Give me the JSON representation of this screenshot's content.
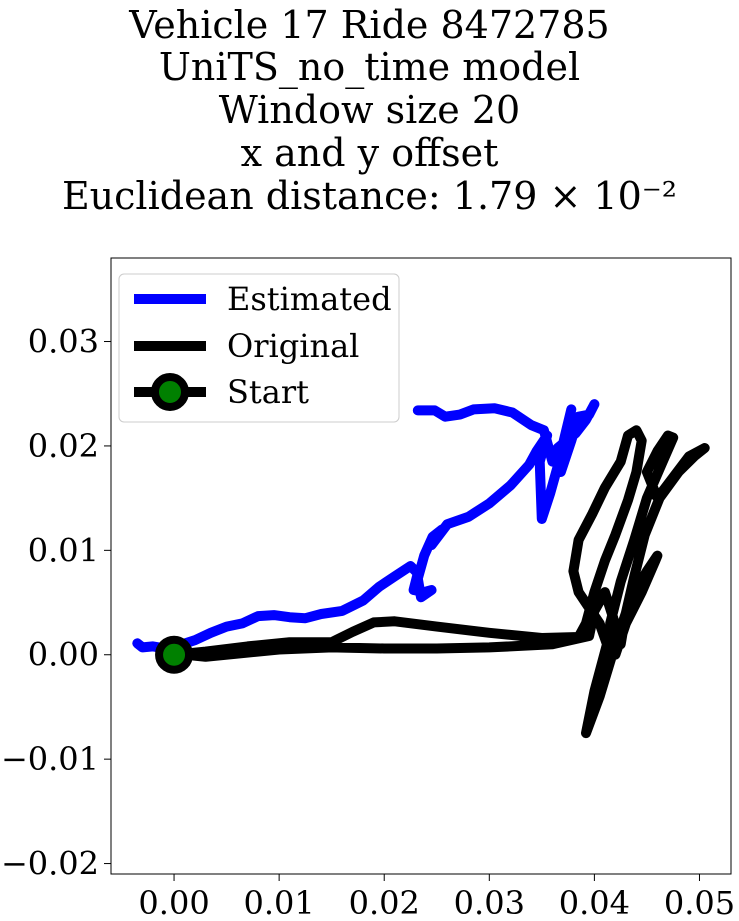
{
  "chart_data": {
    "type": "line",
    "title_lines": [
      "Vehicle 17 Ride 8472785",
      "UniTS_no_time model",
      "Window size 20",
      "x and y offset",
      "Euclidean distance: 1.79 × 10⁻²"
    ],
    "xlabel": "",
    "ylabel": "",
    "xlim": [
      -0.006,
      0.053
    ],
    "ylim": [
      -0.021,
      0.038
    ],
    "xticks": [
      0.0,
      0.01,
      0.02,
      0.03,
      0.04,
      0.05
    ],
    "xtick_labels": [
      "0.00",
      "0.01",
      "0.02",
      "0.03",
      "0.04",
      "0.05"
    ],
    "yticks": [
      -0.02,
      -0.01,
      0.0,
      0.01,
      0.02,
      0.03
    ],
    "ytick_labels": [
      "−0.02",
      "−0.01",
      "0.00",
      "0.01",
      "0.02",
      "0.03"
    ],
    "grid": false,
    "legend_position": "top-left",
    "series": [
      {
        "name": "Estimated",
        "color": "#0000ff",
        "points": [
          [
            -0.0035,
            0.0011
          ],
          [
            -0.003,
            0.0007
          ],
          [
            -0.002,
            0.0008
          ],
          [
            -0.0008,
            0.0006
          ],
          [
            0.0005,
            0.0009
          ],
          [
            0.002,
            0.0014
          ],
          [
            0.0035,
            0.0021
          ],
          [
            0.005,
            0.0027
          ],
          [
            0.0065,
            0.003
          ],
          [
            0.008,
            0.0037
          ],
          [
            0.0095,
            0.0038
          ],
          [
            0.011,
            0.0036
          ],
          [
            0.0125,
            0.0035
          ],
          [
            0.014,
            0.0039
          ],
          [
            0.016,
            0.0042
          ],
          [
            0.018,
            0.0052
          ],
          [
            0.0195,
            0.0065
          ],
          [
            0.021,
            0.0075
          ],
          [
            0.0225,
            0.0085
          ],
          [
            0.0232,
            0.0078
          ],
          [
            0.0228,
            0.0062
          ],
          [
            0.0238,
            0.006
          ],
          [
            0.0245,
            0.0062
          ],
          [
            0.0235,
            0.0055
          ],
          [
            0.0232,
            0.0073
          ],
          [
            0.0238,
            0.0095
          ],
          [
            0.0246,
            0.0113
          ],
          [
            0.0255,
            0.012
          ],
          [
            0.0245,
            0.0105
          ],
          [
            0.026,
            0.0125
          ],
          [
            0.028,
            0.0132
          ],
          [
            0.03,
            0.0145
          ],
          [
            0.032,
            0.0162
          ],
          [
            0.0338,
            0.0182
          ],
          [
            0.0345,
            0.0195
          ],
          [
            0.0355,
            0.021
          ],
          [
            0.0348,
            0.0185
          ],
          [
            0.035,
            0.013
          ],
          [
            0.0358,
            0.0155
          ],
          [
            0.0365,
            0.018
          ],
          [
            0.0372,
            0.021
          ],
          [
            0.0378,
            0.0235
          ],
          [
            0.037,
            0.02
          ],
          [
            0.0368,
            0.0175
          ],
          [
            0.0378,
            0.0205
          ],
          [
            0.0385,
            0.0228
          ],
          [
            0.0395,
            0.023
          ],
          [
            0.04,
            0.024
          ],
          [
            0.0392,
            0.0225
          ],
          [
            0.0382,
            0.0212
          ],
          [
            0.0365,
            0.0198
          ],
          [
            0.036,
            0.0185
          ],
          [
            0.0352,
            0.0215
          ],
          [
            0.034,
            0.022
          ],
          [
            0.0322,
            0.0232
          ],
          [
            0.0305,
            0.0236
          ],
          [
            0.0285,
            0.0235
          ],
          [
            0.0272,
            0.023
          ],
          [
            0.0258,
            0.0228
          ],
          [
            0.0248,
            0.0234
          ],
          [
            0.0232,
            0.0234
          ]
        ]
      },
      {
        "name": "Original",
        "color": "#000000",
        "points": [
          [
            0.0,
            0.0
          ],
          [
            0.003,
            0.0003
          ],
          [
            0.007,
            0.0008
          ],
          [
            0.011,
            0.0012
          ],
          [
            0.015,
            0.0012
          ],
          [
            0.017,
            0.0022
          ],
          [
            0.019,
            0.0031
          ],
          [
            0.021,
            0.0032
          ],
          [
            0.025,
            0.0027
          ],
          [
            0.03,
            0.0021
          ],
          [
            0.035,
            0.0016
          ],
          [
            0.0385,
            0.0017
          ],
          [
            0.0392,
            0.003
          ],
          [
            0.04,
            0.006
          ],
          [
            0.041,
            0.009
          ],
          [
            0.042,
            0.0115
          ],
          [
            0.0432,
            0.0148
          ],
          [
            0.044,
            0.0175
          ],
          [
            0.0445,
            0.0205
          ],
          [
            0.044,
            0.0215
          ],
          [
            0.0432,
            0.021
          ],
          [
            0.0425,
            0.0185
          ],
          [
            0.041,
            0.016
          ],
          [
            0.0398,
            0.0135
          ],
          [
            0.0385,
            0.011
          ],
          [
            0.038,
            0.008
          ],
          [
            0.0385,
            0.006
          ],
          [
            0.0395,
            0.0045
          ],
          [
            0.0405,
            0.003
          ],
          [
            0.0412,
            0.001
          ],
          [
            0.04,
            -0.0035
          ],
          [
            0.0392,
            -0.0075
          ],
          [
            0.0405,
            -0.004
          ],
          [
            0.042,
            0.001
          ],
          [
            0.0435,
            0.0055
          ],
          [
            0.045,
            0.008
          ],
          [
            0.046,
            0.0095
          ],
          [
            0.0458,
            0.009
          ],
          [
            0.0445,
            0.006
          ],
          [
            0.043,
            0.003
          ],
          [
            0.042,
            0.0
          ],
          [
            0.0415,
            0.003
          ],
          [
            0.0425,
            0.007
          ],
          [
            0.0438,
            0.011
          ],
          [
            0.045,
            0.015
          ],
          [
            0.0465,
            0.0185
          ],
          [
            0.0475,
            0.0208
          ],
          [
            0.047,
            0.021
          ],
          [
            0.046,
            0.0195
          ],
          [
            0.045,
            0.0175
          ],
          [
            0.046,
            0.015
          ],
          [
            0.0475,
            0.017
          ],
          [
            0.049,
            0.019
          ],
          [
            0.0505,
            0.0198
          ],
          [
            0.0495,
            0.019
          ],
          [
            0.048,
            0.0175
          ],
          [
            0.0462,
            0.015
          ],
          [
            0.0448,
            0.0115
          ],
          [
            0.0438,
            0.0075
          ],
          [
            0.043,
            0.004
          ],
          [
            0.0425,
            0.001
          ],
          [
            0.0418,
            0.0035
          ],
          [
            0.041,
            0.006
          ],
          [
            0.04,
            0.0042
          ],
          [
            0.0395,
            0.0018
          ],
          [
            0.036,
            0.001
          ],
          [
            0.03,
            0.0007
          ],
          [
            0.025,
            0.0006
          ],
          [
            0.02,
            0.0006
          ],
          [
            0.015,
            0.0007
          ],
          [
            0.01,
            0.0005
          ],
          [
            0.006,
            0.0001
          ],
          [
            0.003,
            -0.0002
          ],
          [
            0.001,
            0.0
          ],
          [
            0.0,
            0.0
          ]
        ]
      }
    ],
    "start_point": {
      "name": "Start",
      "x": 0.0,
      "y": 0.0,
      "outer_color": "#000000",
      "inner_color": "#008000"
    }
  }
}
